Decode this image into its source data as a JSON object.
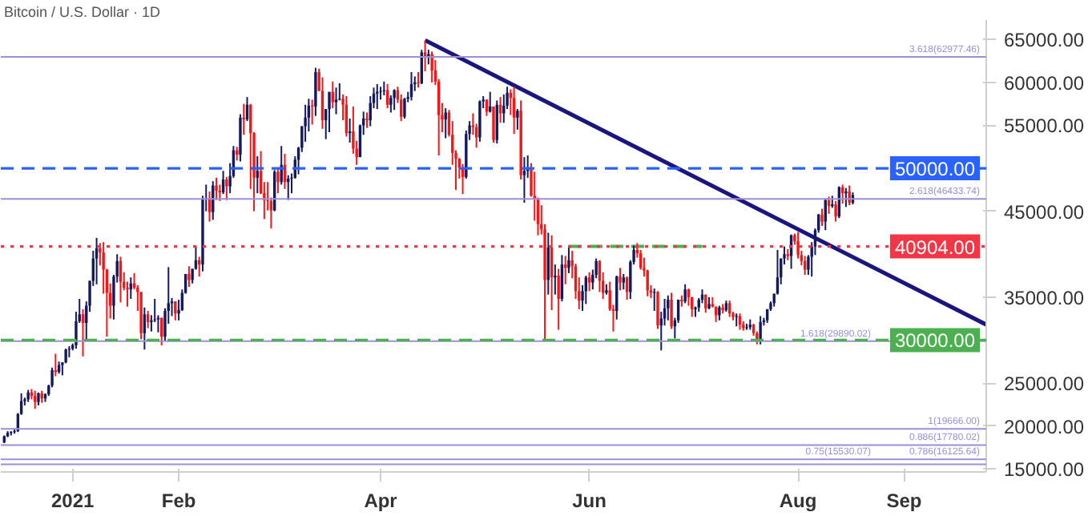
{
  "chart_data": {
    "type": "candlestick",
    "title": "Bitcoin / U.S. Dollar · 1D",
    "x": [
      "2020-12-12",
      "2020-12-13",
      "2020-12-14",
      "2020-12-15",
      "2020-12-16",
      "2020-12-17",
      "2020-12-18",
      "2020-12-19",
      "2020-12-20",
      "2020-12-21",
      "2020-12-22",
      "2020-12-23",
      "2020-12-24",
      "2020-12-25",
      "2020-12-26",
      "2020-12-27",
      "2020-12-28",
      "2020-12-29",
      "2020-12-30",
      "2020-12-31",
      "2021-01-01",
      "2021-01-02",
      "2021-01-03",
      "2021-01-04",
      "2021-01-05",
      "2021-01-06",
      "2021-01-07",
      "2021-01-08",
      "2021-01-09",
      "2021-01-10",
      "2021-01-11",
      "2021-01-12",
      "2021-01-13",
      "2021-01-14",
      "2021-01-15",
      "2021-01-16",
      "2021-01-17",
      "2021-01-18",
      "2021-01-19",
      "2021-01-20",
      "2021-01-21",
      "2021-01-22",
      "2021-01-23",
      "2021-01-24",
      "2021-01-25",
      "2021-01-26",
      "2021-01-27",
      "2021-01-28",
      "2021-01-29",
      "2021-01-30",
      "2021-01-31",
      "2021-02-01",
      "2021-02-02",
      "2021-02-03",
      "2021-02-04",
      "2021-02-05",
      "2021-02-06",
      "2021-02-07",
      "2021-02-08",
      "2021-02-09",
      "2021-02-10",
      "2021-02-11",
      "2021-02-12",
      "2021-02-13",
      "2021-02-14",
      "2021-02-15",
      "2021-02-16",
      "2021-02-17",
      "2021-02-18",
      "2021-02-19",
      "2021-02-20",
      "2021-02-21",
      "2021-02-22",
      "2021-02-23",
      "2021-02-24",
      "2021-02-25",
      "2021-02-26",
      "2021-02-27",
      "2021-02-28",
      "2021-03-01",
      "2021-03-02",
      "2021-03-03",
      "2021-03-04",
      "2021-03-05",
      "2021-03-06",
      "2021-03-07",
      "2021-03-08",
      "2021-03-09",
      "2021-03-10",
      "2021-03-11",
      "2021-03-12",
      "2021-03-13",
      "2021-03-14",
      "2021-03-15",
      "2021-03-16",
      "2021-03-17",
      "2021-03-18",
      "2021-03-19",
      "2021-03-20",
      "2021-03-21",
      "2021-03-22",
      "2021-03-23",
      "2021-03-24",
      "2021-03-25",
      "2021-03-26",
      "2021-03-27",
      "2021-03-28",
      "2021-03-29",
      "2021-03-30",
      "2021-03-31",
      "2021-04-01",
      "2021-04-02",
      "2021-04-03",
      "2021-04-04",
      "2021-04-05",
      "2021-04-06",
      "2021-04-07",
      "2021-04-08",
      "2021-04-09",
      "2021-04-10",
      "2021-04-11",
      "2021-04-12",
      "2021-04-13",
      "2021-04-14",
      "2021-04-15",
      "2021-04-16",
      "2021-04-17",
      "2021-04-18",
      "2021-04-19",
      "2021-04-20",
      "2021-04-21",
      "2021-04-22",
      "2021-04-23",
      "2021-04-24",
      "2021-04-25",
      "2021-04-26",
      "2021-04-27",
      "2021-04-28",
      "2021-04-29",
      "2021-04-30",
      "2021-05-01",
      "2021-05-02",
      "2021-05-03",
      "2021-05-04",
      "2021-05-05",
      "2021-05-06",
      "2021-05-07",
      "2021-05-08",
      "2021-05-09",
      "2021-05-10",
      "2021-05-11",
      "2021-05-12",
      "2021-05-13",
      "2021-05-14",
      "2021-05-15",
      "2021-05-16",
      "2021-05-17",
      "2021-05-18",
      "2021-05-19",
      "2021-05-20",
      "2021-05-21",
      "2021-05-22",
      "2021-05-23",
      "2021-05-24",
      "2021-05-25",
      "2021-05-26",
      "2021-05-27",
      "2021-05-28",
      "2021-05-29",
      "2021-05-30",
      "2021-05-31",
      "2021-06-01",
      "2021-06-02",
      "2021-06-03",
      "2021-06-04",
      "2021-06-05",
      "2021-06-06",
      "2021-06-07",
      "2021-06-08",
      "2021-06-09",
      "2021-06-10",
      "2021-06-11",
      "2021-06-12",
      "2021-06-13",
      "2021-06-14",
      "2021-06-15",
      "2021-06-16",
      "2021-06-17",
      "2021-06-18",
      "2021-06-19",
      "2021-06-20",
      "2021-06-21",
      "2021-06-22",
      "2021-06-23",
      "2021-06-24",
      "2021-06-25",
      "2021-06-26",
      "2021-06-27",
      "2021-06-28",
      "2021-06-29",
      "2021-06-30",
      "2021-07-01",
      "2021-07-02",
      "2021-07-03",
      "2021-07-04",
      "2021-07-05",
      "2021-07-06",
      "2021-07-07",
      "2021-07-08",
      "2021-07-09",
      "2021-07-10",
      "2021-07-11",
      "2021-07-12",
      "2021-07-13",
      "2021-07-14",
      "2021-07-15",
      "2021-07-16",
      "2021-07-17",
      "2021-07-18",
      "2021-07-19",
      "2021-07-20",
      "2021-07-21",
      "2021-07-22",
      "2021-07-23",
      "2021-07-24",
      "2021-07-25",
      "2021-07-26",
      "2021-07-27",
      "2021-07-28",
      "2021-07-29",
      "2021-07-30",
      "2021-07-31",
      "2021-08-01",
      "2021-08-02",
      "2021-08-03",
      "2021-08-04",
      "2021-08-05",
      "2021-08-06",
      "2021-08-07",
      "2021-08-08",
      "2021-08-09",
      "2021-08-10",
      "2021-08-11",
      "2021-08-12",
      "2021-08-13",
      "2021-08-14",
      "2021-08-15",
      "2021-08-16",
      "2021-08-17"
    ],
    "ohlc": [
      [
        18100,
        18900,
        18000,
        18800
      ],
      [
        18800,
        19400,
        18700,
        19200
      ],
      [
        19200,
        19400,
        18900,
        19300
      ],
      [
        19300,
        19600,
        19100,
        19400
      ],
      [
        19400,
        21500,
        19300,
        21400
      ],
      [
        21400,
        23800,
        21300,
        22900
      ],
      [
        22900,
        23300,
        22400,
        23100
      ],
      [
        23100,
        24200,
        22800,
        23900
      ],
      [
        23900,
        24300,
        23100,
        23500
      ],
      [
        23500,
        24100,
        22000,
        22800
      ],
      [
        22800,
        23900,
        22400,
        23800
      ],
      [
        23800,
        24100,
        22700,
        23200
      ],
      [
        23200,
        23800,
        22800,
        23700
      ],
      [
        23700,
        24800,
        23500,
        24700
      ],
      [
        24700,
        26800,
        24500,
        26500
      ],
      [
        26500,
        28400,
        25800,
        26300
      ],
      [
        26300,
        27500,
        26100,
        27100
      ],
      [
        27100,
        27400,
        25900,
        27400
      ],
      [
        27400,
        29000,
        27300,
        28900
      ],
      [
        28900,
        29300,
        28000,
        29000
      ],
      [
        29000,
        29600,
        28800,
        29400
      ],
      [
        29400,
        33300,
        29000,
        32200
      ],
      [
        32200,
        34800,
        32000,
        33000
      ],
      [
        33000,
        33600,
        28100,
        32000
      ],
      [
        32000,
        34500,
        29900,
        34000
      ],
      [
        34000,
        36900,
        33300,
        36900
      ],
      [
        36900,
        40400,
        36300,
        39500
      ],
      [
        39500,
        41900,
        36500,
        40700
      ],
      [
        40700,
        41300,
        38700,
        40200
      ],
      [
        40200,
        41400,
        35400,
        38200
      ],
      [
        38200,
        38300,
        30400,
        35500
      ],
      [
        35500,
        36600,
        32500,
        34000
      ],
      [
        34000,
        37600,
        32400,
        37400
      ],
      [
        37400,
        40000,
        36700,
        39200
      ],
      [
        39200,
        39700,
        34400,
        36800
      ],
      [
        36800,
        37900,
        35800,
        36100
      ],
      [
        36100,
        36800,
        33900,
        35900
      ],
      [
        35900,
        37300,
        34800,
        36600
      ],
      [
        36600,
        37800,
        35900,
        36100
      ],
      [
        36100,
        36400,
        33400,
        35600
      ],
      [
        35600,
        35600,
        30100,
        30800
      ],
      [
        30800,
        33800,
        28900,
        33000
      ],
      [
        33000,
        33400,
        31400,
        32100
      ],
      [
        32100,
        32900,
        31000,
        32300
      ],
      [
        32300,
        34800,
        32100,
        32400
      ],
      [
        32400,
        32900,
        30900,
        32600
      ],
      [
        32600,
        32600,
        29400,
        30400
      ],
      [
        30400,
        33700,
        29900,
        33400
      ],
      [
        33400,
        38500,
        31900,
        34300
      ],
      [
        34300,
        34900,
        32800,
        34500
      ],
      [
        34500,
        34500,
        32300,
        33100
      ],
      [
        33100,
        34700,
        32300,
        33500
      ],
      [
        33500,
        35900,
        33400,
        35500
      ],
      [
        35500,
        37700,
        35400,
        37700
      ],
      [
        37700,
        38600,
        36200,
        37000
      ],
      [
        37000,
        38300,
        36600,
        38300
      ],
      [
        38300,
        40900,
        38200,
        39300
      ],
      [
        39300,
        39700,
        37400,
        38800
      ],
      [
        38800,
        46800,
        38000,
        46400
      ],
      [
        46400,
        48100,
        45000,
        46500
      ],
      [
        46500,
        47300,
        43800,
        44900
      ],
      [
        44900,
        48500,
        44000,
        48000
      ],
      [
        48000,
        48900,
        46300,
        47400
      ],
      [
        47400,
        48100,
        46200,
        47200
      ],
      [
        47200,
        49700,
        47000,
        48700
      ],
      [
        48700,
        49000,
        46300,
        47900
      ],
      [
        47900,
        50600,
        47100,
        49100
      ],
      [
        49100,
        52600,
        48900,
        52100
      ],
      [
        52100,
        52500,
        50900,
        51600
      ],
      [
        51600,
        56300,
        50800,
        55900
      ],
      [
        55900,
        57500,
        53900,
        55700
      ],
      [
        55700,
        58300,
        55500,
        57400
      ],
      [
        57400,
        57500,
        47600,
        54100
      ],
      [
        54100,
        54200,
        45000,
        48900
      ],
      [
        48900,
        51400,
        47100,
        49700
      ],
      [
        49700,
        52000,
        47000,
        47100
      ],
      [
        47100,
        48400,
        44100,
        46300
      ],
      [
        46300,
        48400,
        45100,
        46200
      ],
      [
        46200,
        46600,
        43000,
        45100
      ],
      [
        45100,
        49800,
        45000,
        49600
      ],
      [
        49600,
        50100,
        47100,
        48400
      ],
      [
        48400,
        52600,
        48100,
        50400
      ],
      [
        50400,
        51700,
        47600,
        48400
      ],
      [
        48400,
        49200,
        46300,
        48800
      ],
      [
        48800,
        49400,
        47100,
        48900
      ],
      [
        48900,
        51400,
        48800,
        51000
      ],
      [
        51000,
        52500,
        49300,
        52400
      ],
      [
        52400,
        54900,
        51900,
        54900
      ],
      [
        54900,
        57400,
        53100,
        55900
      ],
      [
        55900,
        58100,
        54300,
        57300
      ],
      [
        57300,
        58000,
        55100,
        57200
      ],
      [
        57200,
        61700,
        56100,
        61200
      ],
      [
        61200,
        61600,
        59000,
        59000
      ],
      [
        59000,
        60600,
        54600,
        55600
      ],
      [
        55600,
        56900,
        53400,
        56900
      ],
      [
        56900,
        58900,
        54200,
        58900
      ],
      [
        58900,
        60100,
        57000,
        57700
      ],
      [
        57700,
        59400,
        56300,
        58000
      ],
      [
        58000,
        59900,
        57900,
        58100
      ],
      [
        58100,
        58600,
        55600,
        57400
      ],
      [
        57400,
        58400,
        53700,
        54100
      ],
      [
        54100,
        55800,
        53000,
        54300
      ],
      [
        54300,
        57200,
        51700,
        52300
      ],
      [
        52300,
        53200,
        50400,
        51300
      ],
      [
        51300,
        55100,
        51300,
        55000
      ],
      [
        55000,
        56600,
        53900,
        55800
      ],
      [
        55800,
        56500,
        54700,
        55600
      ],
      [
        55600,
        58400,
        54900,
        57600
      ],
      [
        57600,
        59400,
        57000,
        58700
      ],
      [
        58700,
        59800,
        56900,
        58900
      ],
      [
        58900,
        59500,
        58000,
        59000
      ],
      [
        59000,
        60100,
        58500,
        59100
      ],
      [
        59100,
        59800,
        57000,
        57400
      ],
      [
        57400,
        58500,
        56500,
        58200
      ],
      [
        58200,
        59200,
        56800,
        59100
      ],
      [
        59100,
        59500,
        57600,
        58000
      ],
      [
        58000,
        58600,
        55500,
        56000
      ],
      [
        56000,
        58200,
        55800,
        58100
      ],
      [
        58100,
        58900,
        57700,
        58300
      ],
      [
        58300,
        61200,
        57900,
        59800
      ],
      [
        59800,
        60700,
        59000,
        60000
      ],
      [
        60000,
        61200,
        59400,
        59900
      ],
      [
        59900,
        63800,
        59800,
        63500
      ],
      [
        63500,
        64900,
        61300,
        63000
      ],
      [
        63000,
        63800,
        62100,
        63300
      ],
      [
        63300,
        63600,
        60000,
        61400
      ],
      [
        61400,
        62600,
        59700,
        60100
      ],
      [
        60100,
        60400,
        51500,
        56200
      ],
      [
        56200,
        57600,
        54200,
        55700
      ],
      [
        55700,
        57000,
        53500,
        56500
      ],
      [
        56500,
        56800,
        53700,
        53900
      ],
      [
        53900,
        55500,
        50400,
        51800
      ],
      [
        51800,
        52100,
        47500,
        51100
      ],
      [
        51100,
        51200,
        48800,
        50100
      ],
      [
        50100,
        50500,
        47000,
        49000
      ],
      [
        49000,
        54400,
        48800,
        54000
      ],
      [
        54000,
        55500,
        53300,
        55000
      ],
      [
        55000,
        56400,
        53900,
        54800
      ],
      [
        54800,
        55200,
        52400,
        53600
      ],
      [
        53600,
        57900,
        53100,
        57800
      ],
      [
        57800,
        58400,
        57000,
        58000
      ],
      [
        58000,
        58000,
        56100,
        56600
      ],
      [
        56600,
        58900,
        56500,
        57200
      ],
      [
        57200,
        57200,
        53000,
        53300
      ],
      [
        53300,
        57900,
        52900,
        57400
      ],
      [
        57400,
        58300,
        55300,
        56400
      ],
      [
        56400,
        58600,
        55300,
        57300
      ],
      [
        57300,
        59500,
        56900,
        58800
      ],
      [
        58800,
        59200,
        56200,
        58200
      ],
      [
        58200,
        59500,
        54000,
        55900
      ],
      [
        55900,
        56900,
        54500,
        56700
      ],
      [
        56700,
        57900,
        48700,
        49200
      ],
      [
        49200,
        51300,
        46000,
        49700
      ],
      [
        49700,
        51500,
        48900,
        49900
      ],
      [
        49900,
        50600,
        46700,
        46800
      ],
      [
        46800,
        49600,
        43900,
        46400
      ],
      [
        46400,
        46600,
        42200,
        43500
      ],
      [
        43500,
        45700,
        42300,
        42900
      ],
      [
        42900,
        43500,
        30000,
        37000
      ],
      [
        37000,
        42500,
        35300,
        40800
      ],
      [
        40800,
        42200,
        33500,
        37300
      ],
      [
        37300,
        38800,
        35300,
        37500
      ],
      [
        37500,
        38300,
        31200,
        34800
      ],
      [
        34800,
        39900,
        34500,
        38800
      ],
      [
        38800,
        39800,
        36500,
        38400
      ],
      [
        38400,
        40800,
        37800,
        39300
      ],
      [
        39300,
        40400,
        37200,
        38600
      ],
      [
        38600,
        38900,
        34800,
        35700
      ],
      [
        35700,
        37300,
        33600,
        34600
      ],
      [
        34600,
        36400,
        33400,
        35700
      ],
      [
        35700,
        37500,
        34200,
        37300
      ],
      [
        37300,
        37900,
        35700,
        36700
      ],
      [
        36700,
        38200,
        35900,
        37600
      ],
      [
        37600,
        39500,
        37200,
        39200
      ],
      [
        39200,
        39300,
        35600,
        36900
      ],
      [
        36900,
        37900,
        34800,
        35500
      ],
      [
        35500,
        36500,
        35300,
        35800
      ],
      [
        35800,
        36800,
        33400,
        33600
      ],
      [
        33600,
        34100,
        31000,
        33400
      ],
      [
        33400,
        37500,
        32400,
        37400
      ],
      [
        37400,
        38400,
        35800,
        36700
      ],
      [
        36700,
        37700,
        35900,
        37300
      ],
      [
        37300,
        37400,
        34700,
        35600
      ],
      [
        35600,
        39300,
        34800,
        39100
      ],
      [
        39100,
        41000,
        38800,
        40500
      ],
      [
        40500,
        41300,
        39600,
        40100
      ],
      [
        40100,
        40500,
        38200,
        38400
      ],
      [
        38400,
        39600,
        37400,
        38100
      ],
      [
        38100,
        38200,
        35100,
        35800
      ],
      [
        35800,
        36400,
        34900,
        35500
      ],
      [
        35500,
        36000,
        33400,
        35600
      ],
      [
        35600,
        35700,
        31300,
        31700
      ],
      [
        31700,
        33300,
        28800,
        32500
      ],
      [
        32500,
        34800,
        31700,
        33700
      ],
      [
        33700,
        35200,
        32300,
        34700
      ],
      [
        34700,
        35500,
        31300,
        31600
      ],
      [
        31600,
        32600,
        30200,
        32300
      ],
      [
        32300,
        34700,
        32000,
        34700
      ],
      [
        34700,
        35200,
        33900,
        34500
      ],
      [
        34500,
        36500,
        34300,
        35900
      ],
      [
        35900,
        36000,
        34000,
        35000
      ],
      [
        35000,
        35000,
        32700,
        33600
      ],
      [
        33600,
        33900,
        32700,
        33800
      ],
      [
        33800,
        34900,
        33300,
        34700
      ],
      [
        34700,
        35900,
        34300,
        35300
      ],
      [
        35300,
        35300,
        33200,
        33700
      ],
      [
        33700,
        35000,
        33600,
        34200
      ],
      [
        34200,
        35000,
        33800,
        33900
      ],
      [
        33900,
        33900,
        32100,
        32900
      ],
      [
        32900,
        34000,
        32300,
        33800
      ],
      [
        33800,
        34200,
        33100,
        33500
      ],
      [
        33500,
        34600,
        33300,
        34300
      ],
      [
        34300,
        34600,
        32700,
        33100
      ],
      [
        33100,
        33300,
        32300,
        32700
      ],
      [
        32700,
        33100,
        31600,
        32800
      ],
      [
        32800,
        33100,
        31200,
        31800
      ],
      [
        31800,
        32200,
        31100,
        31400
      ],
      [
        31400,
        31900,
        31200,
        31500
      ],
      [
        31500,
        32400,
        31200,
        31800
      ],
      [
        31800,
        31900,
        30500,
        30800
      ],
      [
        30800,
        31000,
        29500,
        29800
      ],
      [
        29800,
        32800,
        29500,
        32100
      ],
      [
        32100,
        32600,
        31700,
        32300
      ],
      [
        32300,
        33600,
        32000,
        33600
      ],
      [
        33600,
        34500,
        33400,
        34300
      ],
      [
        34300,
        35400,
        33900,
        35400
      ],
      [
        35400,
        40500,
        35300,
        37300
      ],
      [
        37300,
        39500,
        36500,
        39500
      ],
      [
        39500,
        40900,
        38800,
        40000
      ],
      [
        40000,
        40600,
        39300,
        39800
      ],
      [
        39800,
        42300,
        38300,
        42200
      ],
      [
        42200,
        42400,
        41100,
        41500
      ],
      [
        41500,
        42600,
        39500,
        39900
      ],
      [
        39900,
        40400,
        38700,
        39200
      ],
      [
        39200,
        39800,
        37600,
        38200
      ],
      [
        38200,
        39900,
        37600,
        39700
      ],
      [
        39700,
        41400,
        37400,
        40900
      ],
      [
        40900,
        43000,
        39900,
        42800
      ],
      [
        42800,
        44700,
        42500,
        44600
      ],
      [
        44600,
        45300,
        43300,
        43800
      ],
      [
        43800,
        46500,
        42800,
        46300
      ],
      [
        46300,
        46700,
        44700,
        45600
      ],
      [
        45600,
        46800,
        45400,
        45800
      ],
      [
        45800,
        46200,
        43800,
        44400
      ],
      [
        44400,
        47900,
        44200,
        47800
      ],
      [
        47800,
        48100,
        45900,
        47100
      ],
      [
        47100,
        47700,
        45500,
        47300
      ],
      [
        47300,
        48000,
        45700,
        46000
      ],
      [
        46000,
        47200,
        45800,
        46900
      ]
    ],
    "series": [
      {
        "type": "line",
        "color": "#1b1580",
        "x": [
          "2021-04-14",
          "2021-09-25"
        ],
        "values": [
          64900,
          31800
        ]
      },
      {
        "type": "line",
        "color": "#4caf50",
        "line_style": "dashed",
        "x": [
          "2021-05-26",
          "2021-07-04"
        ],
        "values": [
          40900,
          40900
        ]
      }
    ],
    "ref_lines": [
      {
        "axis": "y",
        "value": 62977.46,
        "label": "3.618(62977.46)",
        "color": "#9c8fd8",
        "line_style": "solid"
      },
      {
        "axis": "y",
        "value": 46433.74,
        "label": "2.618(46433.74)",
        "color": "#9c8fd8",
        "line_style": "solid"
      },
      {
        "axis": "y",
        "value": 29890.02,
        "label": "1.618(29890.02)",
        "color": "#9c8fd8",
        "line_style": "solid"
      },
      {
        "axis": "y",
        "value": 19666.0,
        "label": "1(19666.00)",
        "color": "#9c8fd8",
        "line_style": "solid"
      },
      {
        "axis": "y",
        "value": 17780.02,
        "label": "0.886(17780.02)",
        "color": "#9c8fd8",
        "line_style": "solid"
      },
      {
        "axis": "y",
        "value": 16125.64,
        "label": "0.786(16125.64)",
        "color": "#9c8fd8",
        "line_style": "solid"
      },
      {
        "axis": "y",
        "value": 15530.07,
        "label": "0.75(15530.07)",
        "color": "#9c8fd8",
        "line_style": "solid"
      },
      {
        "axis": "y",
        "value": 50000,
        "label": "50000.00",
        "color": "#2962ff",
        "line_style": "dashed"
      },
      {
        "axis": "y",
        "value": 40904,
        "label": "40904.00",
        "color": "#f23645",
        "line_style": "dotted"
      },
      {
        "axis": "y",
        "value": 30000,
        "label": "30000.00",
        "color": "#4caf50",
        "line_style": "dashed"
      }
    ],
    "xlim": [
      "2020-12-11",
      "2021-09-25"
    ],
    "xticks": [
      {
        "value": "2021-01-01",
        "label": "2021"
      },
      {
        "value": "2021-02-01",
        "label": "Feb"
      },
      {
        "value": "2021-04-01",
        "label": "Apr"
      },
      {
        "value": "2021-06-01",
        "label": "Jun"
      },
      {
        "value": "2021-08-01",
        "label": "Aug"
      },
      {
        "value": "2021-09-01",
        "label": "Sep"
      }
    ],
    "ylim": [
      14650,
      67265
    ],
    "yticks": [
      {
        "value": 15000,
        "label": "15000.00"
      },
      {
        "value": 20000,
        "label": "20000.00"
      },
      {
        "value": 25000,
        "label": "25000.00"
      },
      {
        "value": 35000,
        "label": "35000.00"
      },
      {
        "value": 45000,
        "label": "45000.00"
      },
      {
        "value": 55000,
        "label": "55000.00"
      },
      {
        "value": 60000,
        "label": "60000.00"
      },
      {
        "value": 65000,
        "label": "65000.00"
      }
    ],
    "grid": false
  }
}
